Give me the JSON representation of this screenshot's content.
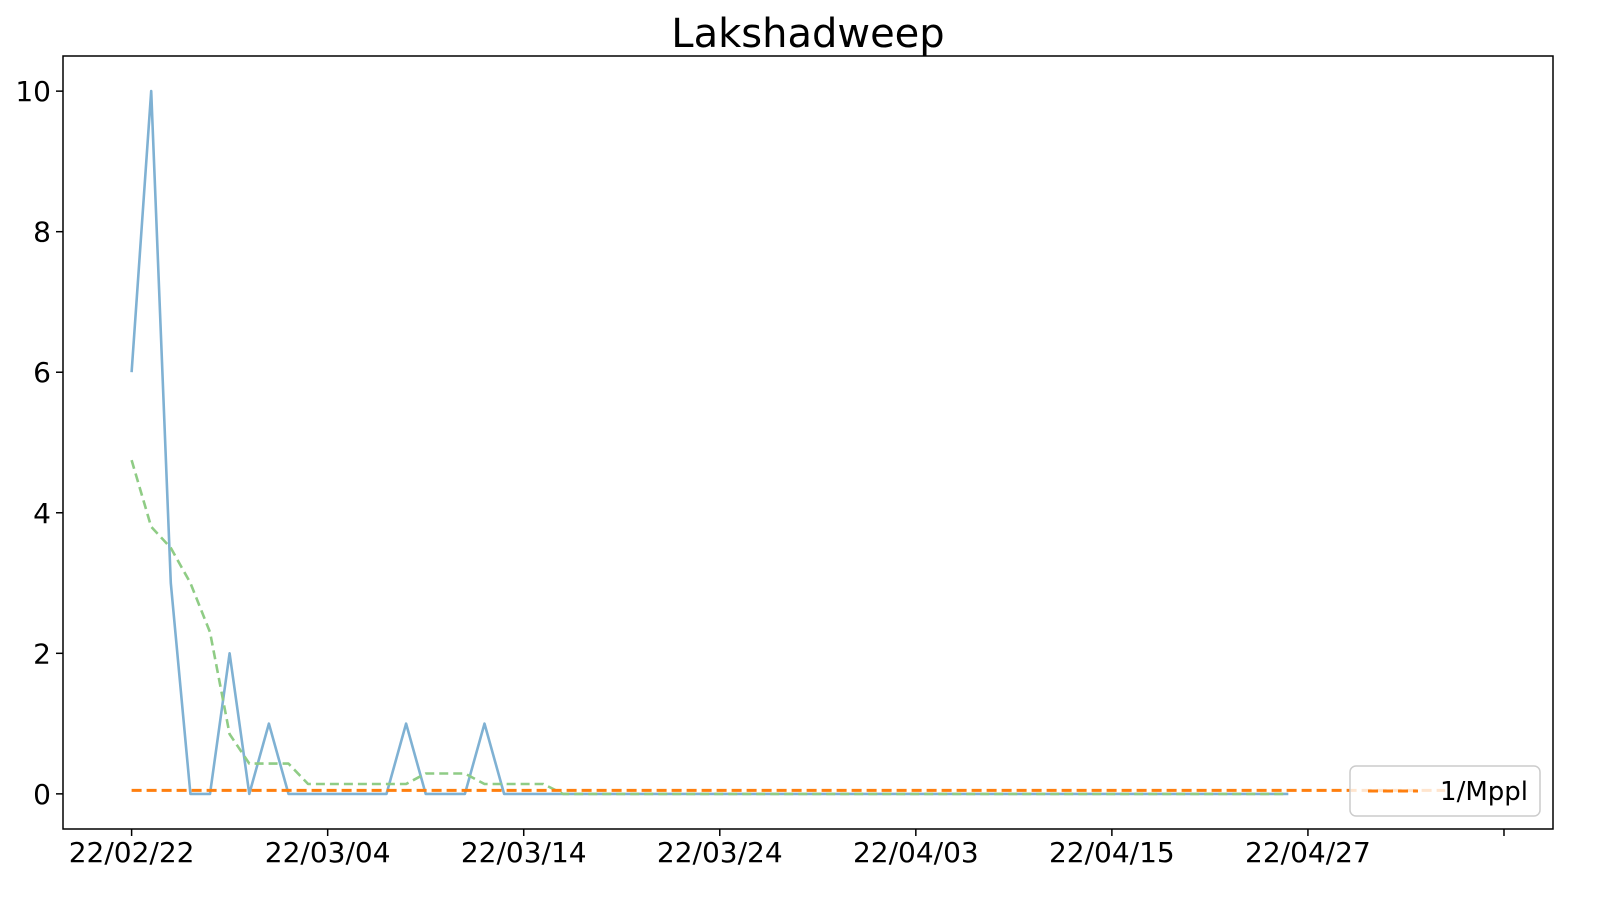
{
  "chart_data": {
    "type": "line",
    "title": "Lakshadweep",
    "xlabel": "",
    "ylabel": "",
    "x_start_date": "22/02/22",
    "x_tick_labels": [
      "22/02/22",
      "22/03/04",
      "22/03/14",
      "22/03/24",
      "22/04/03",
      "22/04/15",
      "22/04/27",
      ""
    ],
    "x_range_index": [
      -3.5,
      72.5
    ],
    "ylim": [
      -0.5,
      10.5
    ],
    "y_ticks": [
      0,
      2,
      4,
      6,
      8,
      10
    ],
    "grid": false,
    "legend": {
      "placement": "lower-right",
      "entries": [
        "1/Mppl"
      ]
    },
    "series": [
      {
        "key": "daily",
        "color": "#7fb1d3",
        "style": "solid",
        "values": [
          6,
          10,
          3,
          0,
          0,
          2,
          0,
          1,
          0,
          0,
          0,
          0,
          0,
          0,
          1,
          0,
          0,
          0,
          1,
          0,
          0,
          0,
          0,
          0,
          0,
          0,
          0,
          0,
          0,
          0,
          0,
          0,
          0,
          0,
          0,
          0,
          0,
          0,
          0,
          0,
          0,
          0,
          0,
          0,
          0,
          0,
          0,
          0,
          0,
          0,
          0,
          0,
          0,
          0,
          0,
          0,
          0,
          0,
          0,
          0
        ]
      },
      {
        "key": "rolling-average",
        "color": "#8fcc85",
        "style": "dashed",
        "values": [
          4.75,
          3.8,
          3.5,
          3.0,
          2.3,
          0.85,
          0.43,
          0.43,
          0.43,
          0.14,
          0.14,
          0.14,
          0.14,
          0.14,
          0.14,
          0.29,
          0.29,
          0.29,
          0.14,
          0.14,
          0.14,
          0.14,
          0.0,
          0.0,
          0.0,
          0.0,
          0.0,
          0.0,
          0.0,
          0.0,
          0.0,
          0.0,
          0.0,
          0.0,
          0.0,
          0.0,
          0.0,
          0.0,
          0.0,
          0.0,
          0.0,
          0.0,
          0.0,
          0.0,
          0.0,
          0.0,
          0.0,
          0.0,
          0.0,
          0.0,
          0.0,
          0.0,
          0.0,
          0.0,
          0.0,
          0.0,
          0.0,
          0.0,
          0.0,
          0.0
        ]
      },
      {
        "name": "1/Mppl",
        "key": "one-per-million",
        "color": "#ff7f0e",
        "style": "dashed",
        "x_index_range": [
          0,
          67
        ],
        "value": 0.05
      }
    ]
  }
}
